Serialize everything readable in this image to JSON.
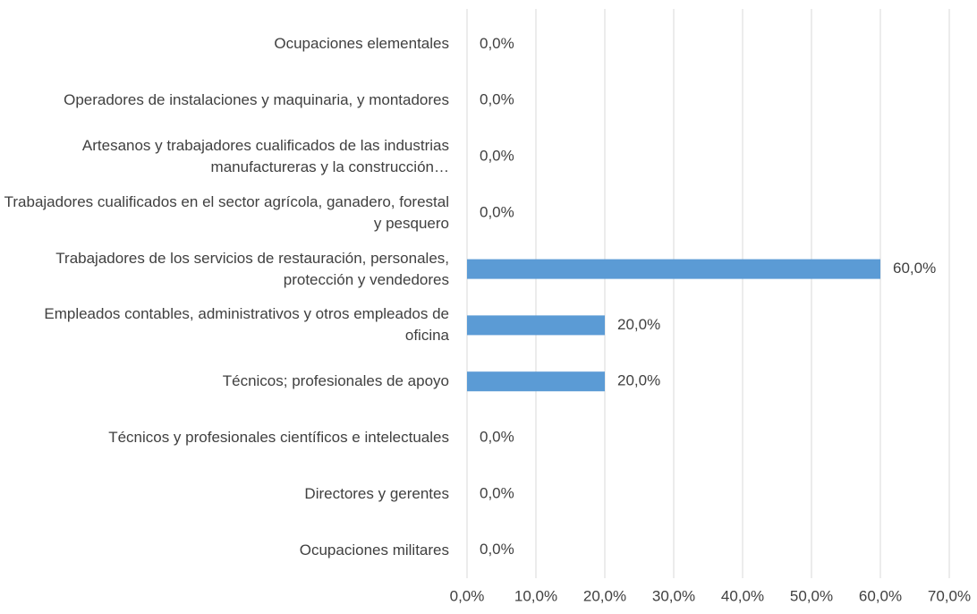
{
  "chart_data": {
    "type": "hbar",
    "categories": [
      "Ocupaciones elementales",
      "Operadores de instalaciones y maquinaria, y montadores",
      "Artesanos y trabajadores cualificados de las industrias manufactureras y la construcción…",
      "Trabajadores cualificados en el sector agrícola, ganadero, forestal y pesquero",
      "Trabajadores de los servicios de restauración, personales, protección y vendedores",
      "Empleados contables, administrativos y otros empleados de oficina",
      "Técnicos; profesionales de apoyo",
      "Técnicos y profesionales científicos e intelectuales",
      "Directores y gerentes",
      "Ocupaciones militares"
    ],
    "values": [
      0,
      0,
      0,
      0,
      60,
      20,
      20,
      0,
      0,
      0
    ],
    "value_labels": [
      "0,0%",
      "0,0%",
      "0,0%",
      "0,0%",
      "60,0%",
      "20,0%",
      "20,0%",
      "0,0%",
      "0,0%",
      "0,0%"
    ],
    "color": "#5b9bd5",
    "xlim": [
      0,
      70
    ],
    "xticks": [
      {
        "value": 0,
        "label": "0,0%"
      },
      {
        "value": 10,
        "label": "10,0%"
      },
      {
        "value": 20,
        "label": "20,0%"
      },
      {
        "value": 30,
        "label": "30,0%"
      },
      {
        "value": 40,
        "label": "40,0%"
      },
      {
        "value": 50,
        "label": "50,0%"
      },
      {
        "value": 60,
        "label": "60,0%"
      },
      {
        "value": 70,
        "label": "70,0%"
      }
    ],
    "grid": true
  }
}
